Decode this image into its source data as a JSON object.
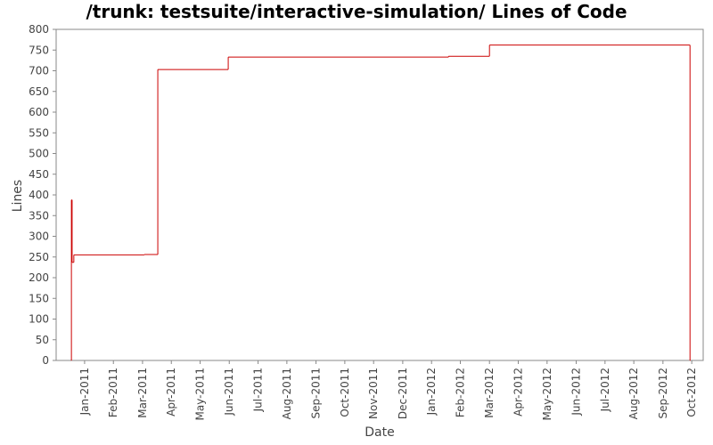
{
  "chart_data": {
    "type": "line",
    "step": true,
    "title": "/trunk: testsuite/interactive-simulation/ Lines of Code",
    "x_label": "Date",
    "y_label": "Lines",
    "x": [
      2010.961,
      2010.962,
      2010.964,
      2010.969,
      2011.172,
      2011.211,
      2011.414,
      2012.049,
      2012.167,
      2012.745
    ],
    "values": [
      0,
      388,
      237,
      255,
      256,
      703,
      733,
      735,
      762,
      0
    ],
    "color": "#cc0000",
    "xlim": [
      2010.918,
      2012.783
    ],
    "xticks": [
      {
        "value": 2011.0,
        "label": "Jan-2011"
      },
      {
        "value": 2011.083,
        "label": "Feb-2011"
      },
      {
        "value": 2011.167,
        "label": "Mar-2011"
      },
      {
        "value": 2011.25,
        "label": "Apr-2011"
      },
      {
        "value": 2011.333,
        "label": "May-2011"
      },
      {
        "value": 2011.417,
        "label": "Jun-2011"
      },
      {
        "value": 2011.5,
        "label": "Jul-2011"
      },
      {
        "value": 2011.583,
        "label": "Aug-2011"
      },
      {
        "value": 2011.667,
        "label": "Sep-2011"
      },
      {
        "value": 2011.75,
        "label": "Oct-2011"
      },
      {
        "value": 2011.833,
        "label": "Nov-2011"
      },
      {
        "value": 2011.917,
        "label": "Dec-2011"
      },
      {
        "value": 2012.0,
        "label": "Jan-2012"
      },
      {
        "value": 2012.083,
        "label": "Feb-2012"
      },
      {
        "value": 2012.167,
        "label": "Mar-2012"
      },
      {
        "value": 2012.25,
        "label": "Apr-2012"
      },
      {
        "value": 2012.333,
        "label": "May-2012"
      },
      {
        "value": 2012.417,
        "label": "Jun-2012"
      },
      {
        "value": 2012.5,
        "label": "Jul-2012"
      },
      {
        "value": 2012.583,
        "label": "Aug-2012"
      },
      {
        "value": 2012.667,
        "label": "Sep-2012"
      },
      {
        "value": 2012.75,
        "label": "Oct-2012"
      }
    ],
    "ylim": [
      0,
      800
    ],
    "yticks": [
      0,
      50,
      100,
      150,
      200,
      250,
      300,
      350,
      400,
      450,
      500,
      550,
      600,
      650,
      700,
      750,
      800
    ],
    "grid": false
  }
}
